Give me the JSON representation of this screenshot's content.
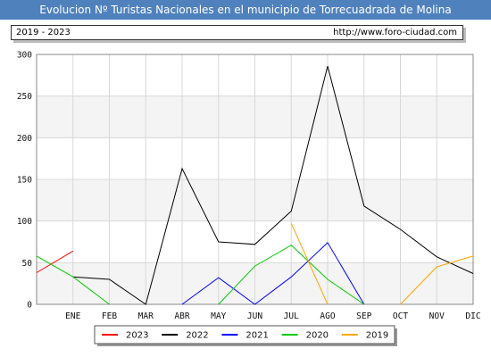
{
  "header": {
    "title": "Evolucion Nº Turistas Nacionales en el municipio de Torrecuadrada de Molina",
    "period": "2019 - 2023",
    "url": "http://www.foro-ciudad.com"
  },
  "chart_data": {
    "type": "line",
    "title": "Evolucion Nº Turistas Nacionales en el municipio de Torrecuadrada de Molina",
    "categories": [
      "ENE",
      "FEB",
      "MAR",
      "ABR",
      "MAY",
      "JUN",
      "JUL",
      "AGO",
      "SEP",
      "OCT",
      "NOV",
      "DIC"
    ],
    "ylim": [
      0,
      300
    ],
    "yticks": [
      0,
      50,
      100,
      150,
      200,
      250,
      300
    ],
    "grid": true,
    "legend_position": "bottom",
    "series": [
      {
        "name": "2023",
        "color": "#ff0000",
        "values": [
          64,
          null,
          null,
          null,
          null,
          null,
          null,
          null,
          null,
          null,
          null,
          null
        ]
      },
      {
        "name": "2022",
        "color": "#000000",
        "values": [
          33,
          30,
          0,
          163,
          75,
          72,
          112,
          286,
          118,
          90,
          57,
          37
        ]
      },
      {
        "name": "2021",
        "color": "#0000ff",
        "values": [
          null,
          null,
          null,
          0,
          32,
          0,
          33,
          74,
          0,
          null,
          null,
          null
        ]
      },
      {
        "name": "2020",
        "color": "#00cc00",
        "values": [
          33,
          0,
          null,
          null,
          0,
          46,
          71,
          30,
          0,
          null,
          null,
          null
        ]
      },
      {
        "name": "2019",
        "color": "#ffa500",
        "values": [
          null,
          null,
          null,
          null,
          null,
          null,
          97,
          0,
          null,
          0,
          45,
          58
        ]
      }
    ],
    "lead_in": {
      "2023": 38,
      "2022": null,
      "2021": null,
      "2020": 58,
      "2019": null
    }
  }
}
